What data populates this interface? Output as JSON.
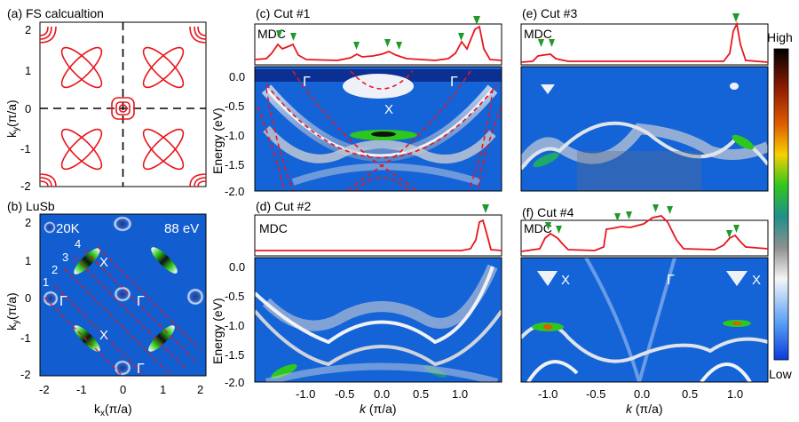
{
  "figure": {
    "panel_titles": {
      "a": "(a) FS calcualtion",
      "b": "(b) LuSb",
      "c": "(c) Cut #1",
      "d": "(d) Cut #2",
      "e": "(e) Cut #3",
      "f": "(f) Cut #4"
    },
    "mdc_label": "MDC",
    "colorbar": {
      "high": "High",
      "low": "Low"
    },
    "b_labels": {
      "temperature": "20K",
      "photon_energy": "88 eV",
      "X": "X",
      "Gamma": "Γ",
      "cuts": [
        "1",
        "2",
        "3",
        "4"
      ]
    },
    "c_labels": {
      "Gamma": "Γ",
      "X": "X"
    },
    "f_labels": {
      "X": "X",
      "Gamma": "Γ"
    },
    "axes": {
      "ky": "k",
      "ky_sub": "y",
      "kx": "k",
      "kx_sub": "x",
      "kunit": "(π/a)",
      "energy": "Energy (eV)",
      "k": "k",
      "kpi": " (π/a)"
    },
    "ticks": {
      "fs": [
        "2",
        "1",
        "0",
        "-1",
        "-2"
      ],
      "fs_x": [
        "-2",
        "-1",
        "0",
        "1",
        "2"
      ],
      "energy": [
        "0.0",
        "-0.5",
        "-1.0",
        "-1.5",
        "-2.0"
      ],
      "kleft": [
        "-1.0",
        "-0.5",
        "0.0",
        "0.5",
        "1.0"
      ],
      "kright": [
        "-1.0",
        "-0.5",
        "0.0",
        "0.5",
        "1.0"
      ]
    },
    "colors": {
      "fs_line": "#e8161c",
      "marker": "#1f9a2a",
      "arpes_bg": "#1464d8"
    }
  },
  "chart_data": [
    {
      "type": "line",
      "panel": "a",
      "title": "(a) FS calcualtion",
      "xlabel": "kx (π/a)",
      "ylabel": "ky (π/a)",
      "xlim": [
        -2.2,
        2.2
      ],
      "ylim": [
        -2.2,
        2.2
      ],
      "features": [
        "electron ellipses at X points (±1,±1)",
        "hole pockets at Γ points (0,0),(±2,±2)"
      ]
    },
    {
      "type": "heatmap",
      "panel": "b",
      "title": "(b) LuSb",
      "xlabel": "kx (π/a)",
      "ylabel": "ky (π/a)",
      "xlim": [
        -2.2,
        2.2
      ],
      "ylim": [
        -2.2,
        2.2
      ],
      "annotations": [
        "20K",
        "88 eV"
      ]
    },
    {
      "type": "heatmap",
      "panel": "c",
      "title": "(c) Cut #1",
      "xlabel": "k (π/a)",
      "ylabel": "Energy (eV)",
      "xlim": [
        -1.6,
        1.6
      ],
      "ylim": [
        -2.0,
        0.1
      ],
      "mdc_peaks_k": [
        -1.32,
        -1.18,
        -0.3,
        0.05,
        0.3,
        1.18,
        1.33
      ]
    },
    {
      "type": "heatmap",
      "panel": "d",
      "title": "(d) Cut #2",
      "xlabel": "k (π/a)",
      "ylabel": "Energy (eV)",
      "xlim": [
        -1.6,
        1.6
      ],
      "ylim": [
        -2.0,
        0.1
      ],
      "mdc_peaks_k": [
        1.35
      ]
    },
    {
      "type": "heatmap",
      "panel": "e",
      "title": "(e) Cut #3",
      "xlabel": "k (π/a)",
      "ylabel": "Energy (eV)",
      "xlim": [
        -1.3,
        1.3
      ],
      "ylim": [
        -2.0,
        0.1
      ],
      "mdc_peaks_k": [
        -0.98,
        -0.9,
        1.0
      ]
    },
    {
      "type": "heatmap",
      "panel": "f",
      "title": "(f) Cut #4",
      "xlabel": "k (π/a)",
      "ylabel": "Energy (eV)",
      "xlim": [
        -1.3,
        1.3
      ],
      "ylim": [
        -2.0,
        0.1
      ],
      "mdc_peaks_k": [
        -0.97,
        -0.92,
        -0.25,
        -0.17,
        0.1,
        0.25,
        0.8,
        1.0
      ]
    }
  ]
}
